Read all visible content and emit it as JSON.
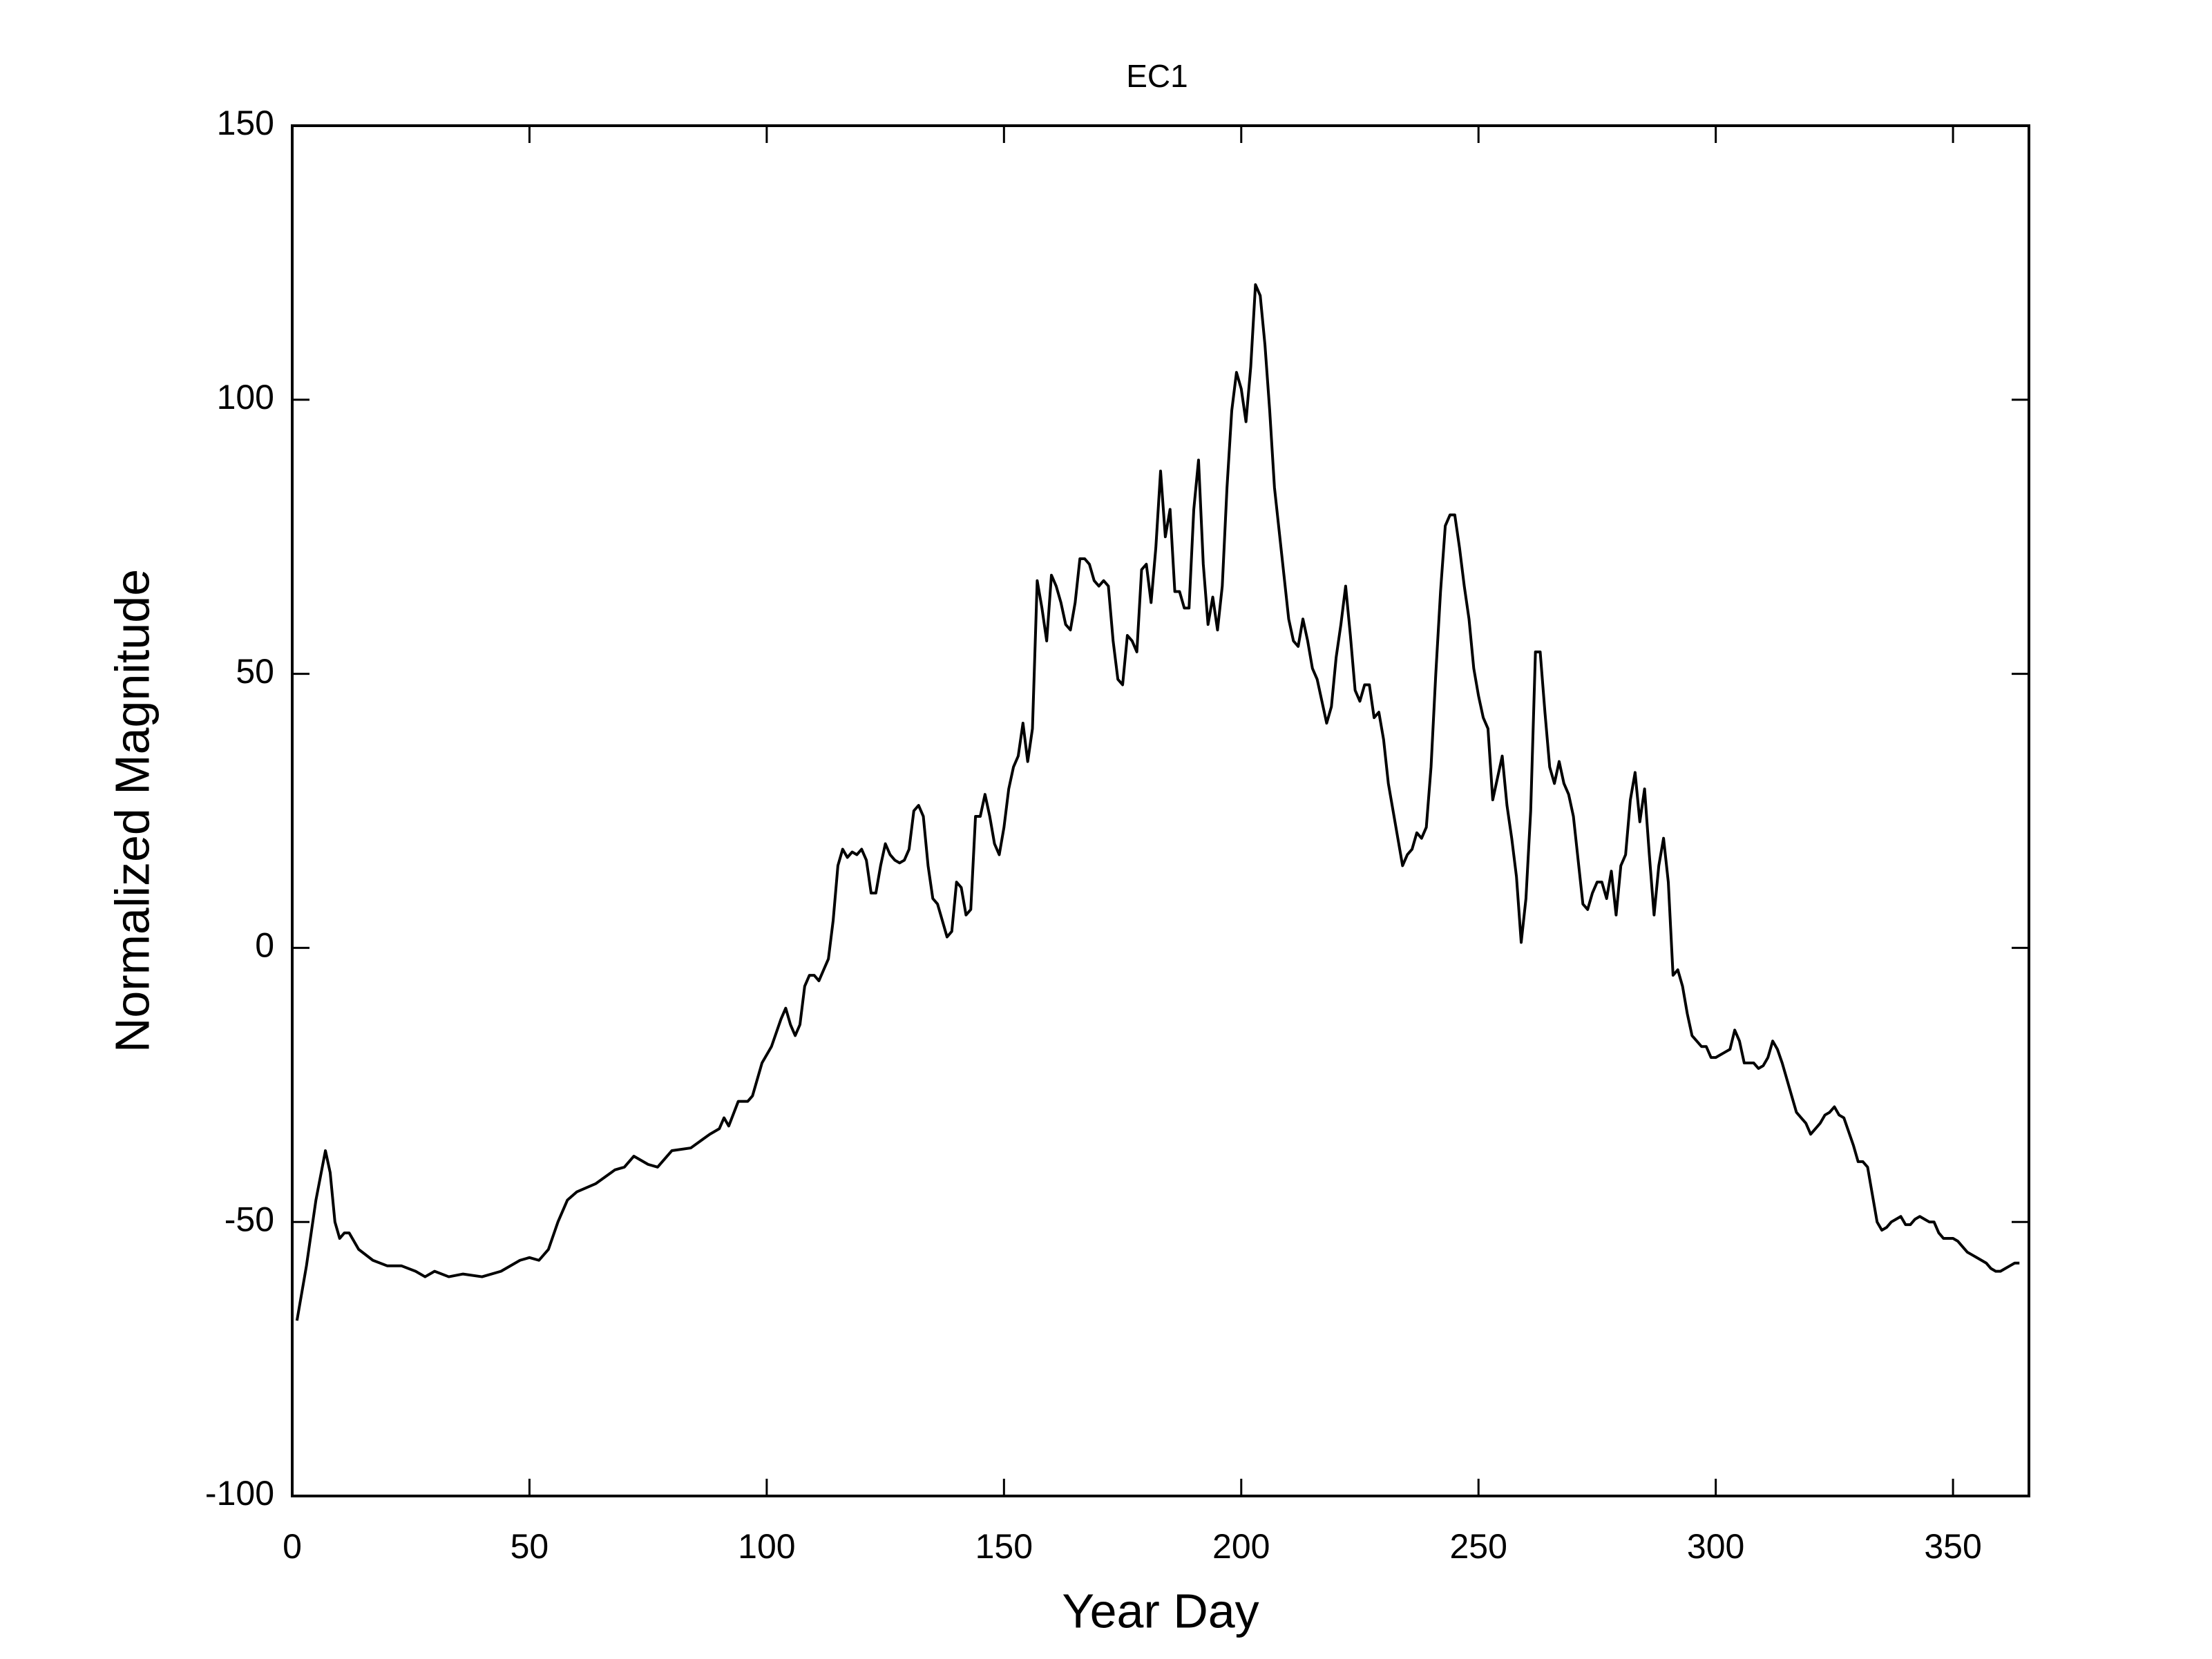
{
  "chart_data": {
    "type": "line",
    "title": "EC1",
    "x_label": "Year Day",
    "y_label": "Normalized Magnitude",
    "color": "#000000",
    "grid": false,
    "xlim": [
      0,
      366
    ],
    "ylim": [
      -100,
      150
    ],
    "xticks": [
      0,
      50,
      100,
      150,
      200,
      250,
      300,
      350
    ],
    "yticks": [
      -100,
      -50,
      0,
      50,
      100,
      150
    ],
    "x": [
      1,
      3,
      5,
      7,
      8,
      9,
      10,
      11,
      12,
      14,
      17,
      20,
      23,
      26,
      28,
      30,
      33,
      36,
      40,
      44,
      48,
      50,
      52,
      54,
      56,
      58,
      60,
      64,
      68,
      70,
      72,
      75,
      77,
      80,
      84,
      88,
      90,
      91,
      92,
      94,
      96,
      97,
      99,
      101,
      103,
      104,
      105,
      106,
      107,
      108,
      109,
      110,
      111,
      112,
      113,
      114,
      115,
      116,
      117,
      118,
      119,
      120,
      121,
      122,
      123,
      124,
      125,
      126,
      127,
      128,
      129,
      130,
      131,
      132,
      133,
      134,
      135,
      136,
      137,
      138,
      139,
      140,
      141,
      142,
      143,
      144,
      145,
      146,
      147,
      148,
      149,
      150,
      151,
      152,
      153,
      154,
      155,
      156,
      157,
      158,
      159,
      160,
      161,
      162,
      163,
      164,
      165,
      166,
      167,
      168,
      169,
      170,
      171,
      172,
      173,
      174,
      175,
      176,
      177,
      178,
      179,
      180,
      181,
      182,
      183,
      184,
      185,
      186,
      187,
      188,
      189,
      190,
      191,
      192,
      193,
      194,
      195,
      196,
      197,
      198,
      199,
      200,
      201,
      202,
      203,
      204,
      205,
      206,
      207,
      208,
      209,
      210,
      211,
      212,
      213,
      214,
      215,
      216,
      217,
      218,
      219,
      220,
      221,
      222,
      223,
      224,
      225,
      226,
      227,
      228,
      229,
      230,
      231,
      232,
      233,
      234,
      235,
      236,
      237,
      238,
      239,
      240,
      241,
      242,
      243,
      244,
      245,
      246,
      247,
      248,
      249,
      250,
      251,
      252,
      253,
      254,
      255,
      256,
      257,
      258,
      259,
      260,
      261,
      262,
      263,
      264,
      265,
      266,
      267,
      268,
      269,
      270,
      271,
      272,
      273,
      274,
      275,
      276,
      277,
      278,
      279,
      280,
      281,
      282,
      283,
      284,
      285,
      286,
      287,
      288,
      289,
      290,
      291,
      292,
      293,
      294,
      295,
      296,
      297,
      298,
      299,
      300,
      301,
      302,
      303,
      304,
      305,
      306,
      307,
      308,
      309,
      310,
      311,
      312,
      313,
      314,
      315,
      316,
      317,
      318,
      319,
      320,
      321,
      322,
      323,
      324,
      325,
      326,
      327,
      328,
      329,
      330,
      331,
      332,
      333,
      334,
      335,
      336,
      337,
      338,
      339,
      340,
      341,
      342,
      343,
      344,
      345,
      346,
      347,
      348,
      349,
      350,
      351,
      352,
      353,
      354,
      355,
      356,
      357,
      358,
      359,
      360,
      361,
      362,
      363,
      364
    ],
    "values": [
      -68,
      -58,
      -46,
      -37,
      -41,
      -50,
      -53,
      -52,
      -52,
      -55,
      -57,
      -58,
      -58,
      -59,
      -60,
      -59,
      -60,
      -59.5,
      -60,
      -59,
      -57,
      -56.5,
      -57,
      -55,
      -50,
      -46,
      -44.5,
      -43,
      -40.5,
      -40,
      -38,
      -39.5,
      -40,
      -37,
      -36.5,
      -34,
      -33,
      -31,
      -32.5,
      -28,
      -28,
      -27,
      -21,
      -18,
      -13,
      -11,
      -14,
      -16,
      -14,
      -7,
      -5,
      -5,
      -6,
      -4,
      -2,
      5,
      15,
      18,
      16.5,
      17.5,
      17,
      18,
      16,
      10,
      10,
      15,
      19,
      17,
      16,
      15.5,
      16,
      18,
      25,
      26,
      24,
      15,
      9,
      8,
      5,
      2,
      3,
      12,
      11,
      6,
      7,
      24,
      24,
      28,
      24,
      19,
      17,
      22,
      29,
      33,
      35,
      41,
      34,
      40,
      67,
      62,
      56,
      68,
      66,
      63,
      59,
      58,
      63,
      71,
      71,
      70,
      67,
      66,
      67,
      66,
      56,
      49,
      48,
      57,
      56,
      54,
      69,
      70,
      63,
      73,
      87,
      75,
      80,
      65,
      65,
      62,
      62,
      80,
      89,
      70,
      59,
      64,
      58,
      66,
      84,
      98,
      105,
      102,
      96,
      106,
      121,
      119,
      110,
      98,
      84,
      76,
      68,
      60,
      56,
      55,
      60,
      56,
      51,
      49,
      45,
      41,
      44,
      53,
      59,
      66,
      57,
      47,
      45,
      48,
      48,
      42,
      43,
      38,
      30,
      25,
      20,
      15,
      17,
      18,
      21,
      20,
      22,
      33,
      50,
      65,
      77,
      79,
      79,
      73,
      66,
      60,
      51,
      46,
      42,
      40,
      27,
      31,
      35,
      26,
      20,
      13,
      1,
      9,
      25,
      54,
      54,
      43,
      33,
      30,
      34,
      30,
      28,
      24,
      16,
      8,
      7,
      10,
      12,
      12,
      9,
      14,
      6,
      15,
      17,
      27,
      32,
      23,
      29,
      17,
      6,
      15,
      20,
      12,
      -5,
      -4,
      -7,
      -12,
      -16,
      -17,
      -18,
      -18,
      -20,
      -20,
      -19.5,
      -19,
      -18.5,
      -15,
      -17,
      -21,
      -21,
      -21,
      -22,
      -21.5,
      -20,
      -17,
      -18.5,
      -21,
      -24,
      -27,
      -30,
      -31,
      -32,
      -34,
      -33,
      -32,
      -30.5,
      -30,
      -29,
      -30.5,
      -31,
      -33.5,
      -36,
      -39,
      -39,
      -40,
      -45,
      -50,
      -51.5,
      -51,
      -50,
      -49.5,
      -49,
      -50.5,
      -50.5,
      -49.5,
      -49,
      -49.5,
      -50,
      -50,
      -52,
      -53,
      -53,
      -53,
      -53.5,
      -54.5,
      -55.5,
      -56,
      -56.5,
      -57,
      -57.5,
      -58.5,
      -59,
      -59,
      -58.5,
      -58,
      -57.5,
      -57.5
    ]
  }
}
